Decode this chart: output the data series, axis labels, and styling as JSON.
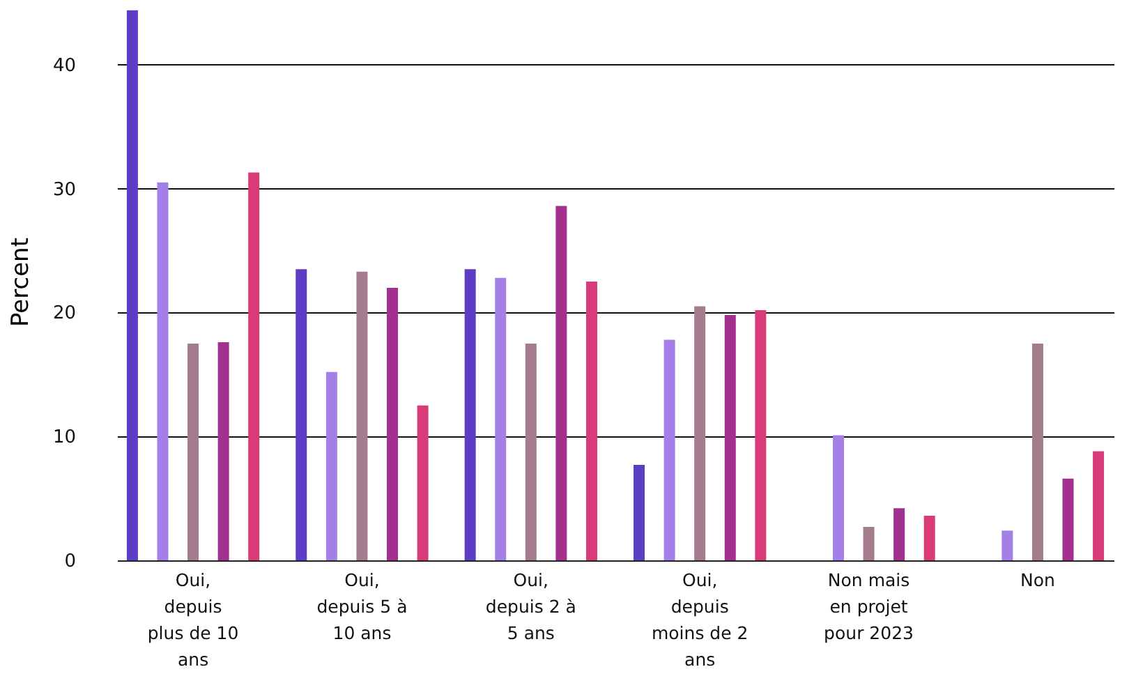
{
  "chart_data": {
    "type": "bar",
    "ylabel": "Percent",
    "categories": [
      "Oui, depuis plus de 10 ans",
      "Oui, depuis 5 à 10 ans",
      "Oui, depuis 2 à 5 ans",
      "Oui, depuis moins de 2 ans",
      "Non mais en projet pour 2023",
      "Non"
    ],
    "series": [
      {
        "color": "#5b3ec4",
        "values": [
          44.4,
          23.5,
          23.5,
          7.7,
          null,
          null
        ]
      },
      {
        "color": "#a57fe8",
        "values": [
          30.5,
          15.2,
          22.8,
          17.8,
          10.1,
          2.4
        ]
      },
      {
        "color": "#a57b8e",
        "values": [
          17.5,
          23.3,
          17.5,
          20.5,
          2.7,
          17.5
        ]
      },
      {
        "color": "#a3308f",
        "values": [
          17.6,
          22.0,
          28.6,
          19.8,
          4.2,
          6.6
        ]
      },
      {
        "color": "#d93a78",
        "values": [
          31.3,
          12.5,
          22.5,
          20.2,
          3.6,
          8.8
        ]
      }
    ],
    "ylim": [
      0,
      45
    ],
    "yticks": [
      0,
      10,
      20,
      30,
      40
    ],
    "grid": "y",
    "legend": false
  }
}
